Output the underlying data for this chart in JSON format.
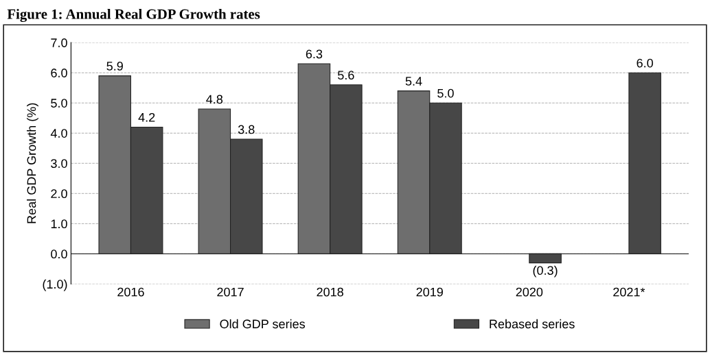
{
  "chart_data": {
    "type": "bar",
    "title": "Figure 1: Annual Real GDP Growth rates",
    "ylabel": "Real GDP Growth (%)",
    "categories": [
      "2016",
      "2017",
      "2018",
      "2019",
      "2020",
      "2021*"
    ],
    "series": [
      {
        "name": "Old GDP series",
        "color": "#6e6e6e",
        "values": [
          5.9,
          4.8,
          6.3,
          5.4,
          null,
          null
        ],
        "value_labels": [
          "5.9",
          "4.8",
          "6.3",
          "5.4",
          null,
          null
        ]
      },
      {
        "name": "Rebased series",
        "color": "#474747",
        "values": [
          4.2,
          3.8,
          5.6,
          5.0,
          -0.3,
          6.0
        ],
        "value_labels": [
          "4.2",
          "3.8",
          "5.6",
          "5.0",
          "(0.3)",
          "6.0"
        ]
      }
    ],
    "ylim": [
      -1,
      7
    ],
    "yticks": [
      {
        "value": -1,
        "label": "(1.0)"
      },
      {
        "value": 0,
        "label": "0.0"
      },
      {
        "value": 1,
        "label": "1.0"
      },
      {
        "value": 2,
        "label": "2.0"
      },
      {
        "value": 3,
        "label": "3.0"
      },
      {
        "value": 4,
        "label": "4.0"
      },
      {
        "value": 5,
        "label": "5.0"
      },
      {
        "value": 6,
        "label": "6.0"
      },
      {
        "value": 7,
        "label": "7.0"
      }
    ],
    "grid": "y",
    "legend": "bottom"
  }
}
